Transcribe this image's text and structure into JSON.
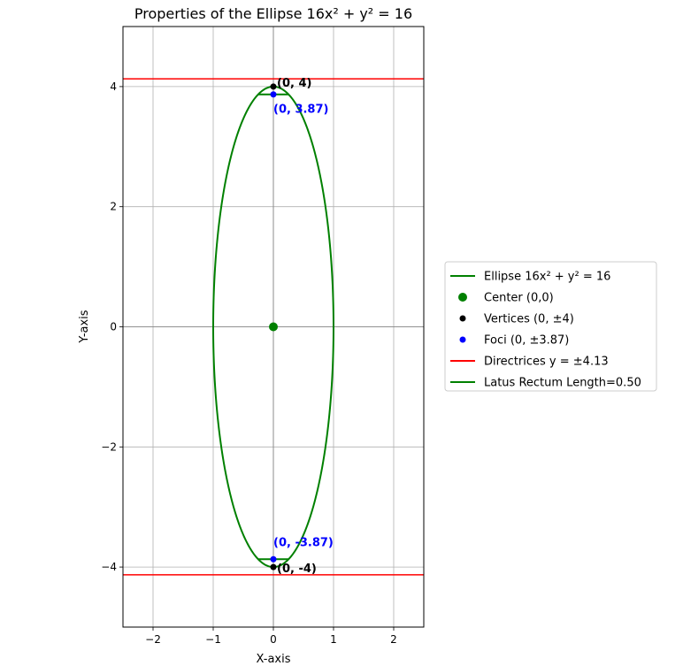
{
  "chart_data": {
    "type": "line",
    "title": "Properties of the Ellipse 16x² + y² = 16",
    "xlabel": "X-axis",
    "ylabel": "Y-axis",
    "xlim": [
      -2.5,
      2.5
    ],
    "ylim": [
      -5,
      5
    ],
    "xticks": [
      -2,
      -1,
      0,
      1,
      2
    ],
    "yticks": [
      -4,
      -2,
      0,
      2,
      4
    ],
    "xtick_labels": [
      "−2",
      "−1",
      "0",
      "1",
      "2"
    ],
    "ytick_labels": [
      "−4",
      "−2",
      "0",
      "2",
      "4"
    ],
    "grid": true,
    "legend_position": "outside-right",
    "ellipse": {
      "a": 1,
      "b": 4,
      "center": [
        0,
        0
      ],
      "color": "#008000"
    },
    "center_point": {
      "x": 0,
      "y": 0,
      "color": "#008000"
    },
    "vertices": [
      {
        "x": 0,
        "y": 4,
        "label": "(0, 4)"
      },
      {
        "x": 0,
        "y": -4,
        "label": "(0, -4)"
      }
    ],
    "foci": [
      {
        "x": 0,
        "y": 3.87,
        "label": "(0, 3.87)"
      },
      {
        "x": 0,
        "y": -3.87,
        "label": "(0, -3.87)"
      }
    ],
    "vertex_color": "#000000",
    "focus_color": "#0000ff",
    "directrices": {
      "values": [
        4.13,
        -4.13
      ],
      "color": "#ff0000"
    },
    "latus_rectum": {
      "half_length": 0.25,
      "y_values": [
        3.87,
        -3.87
      ],
      "color": "#008000"
    },
    "series": [
      {
        "name": "Ellipse 16x² + y² = 16",
        "style": "line",
        "color": "#008000"
      },
      {
        "name": "Center (0,0)",
        "style": "bigdot",
        "color": "#008000"
      },
      {
        "name": "Vertices (0, ±4)",
        "style": "dot",
        "color": "#000000"
      },
      {
        "name": "Foci (0, ±3.87)",
        "style": "dot",
        "color": "#0000ff"
      },
      {
        "name": "Directrices y = ±4.13",
        "style": "line",
        "color": "#ff0000"
      },
      {
        "name": "Latus Rectum Length=0.50",
        "style": "line",
        "color": "#008000"
      }
    ]
  }
}
